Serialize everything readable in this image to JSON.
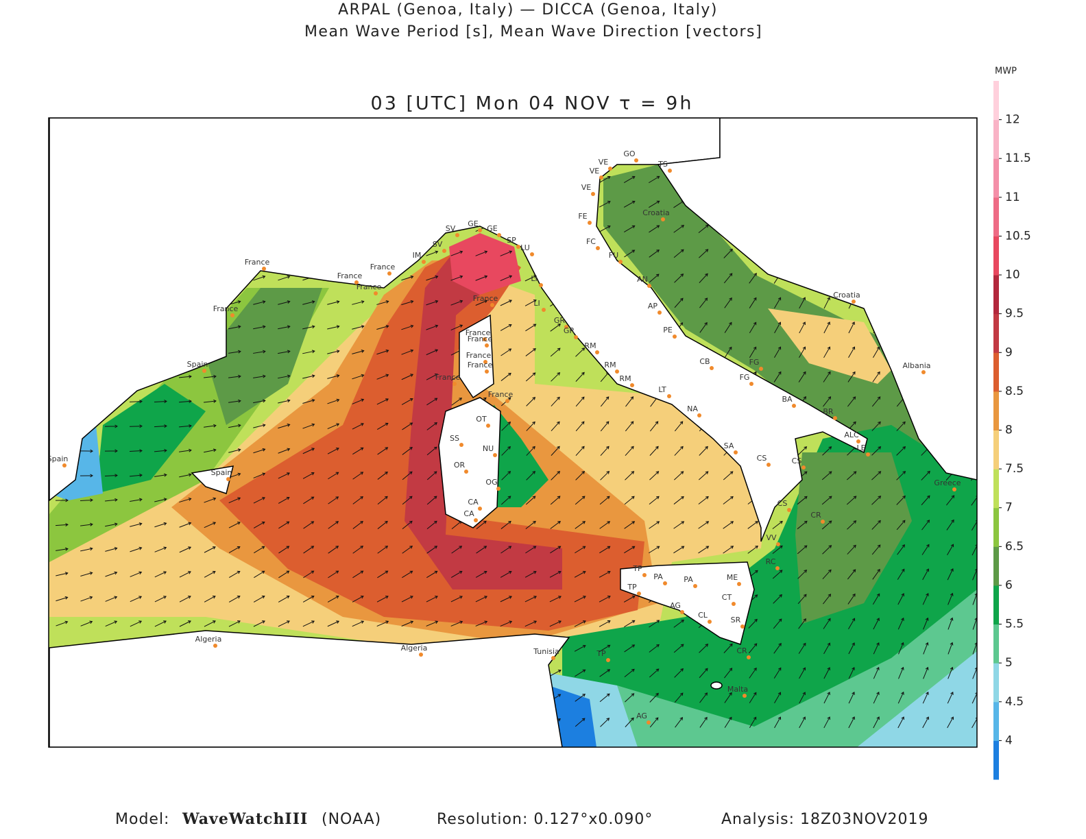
{
  "header": {
    "line1": "ARPAL (Genoa, Italy)  —  DICCA (Genoa, Italy)",
    "line2": "Mean Wave Period [s], Mean Wave Direction [vectors]"
  },
  "map": {
    "title": "03 [UTC] Mon 04 NOV  τ = 9h",
    "places": [
      "France",
      "France",
      "France",
      "France",
      "France",
      "Spain",
      "Spain",
      "Spain",
      "IM",
      "SV",
      "SV",
      "GE",
      "GE",
      "SP",
      "LU",
      "LI",
      "LI",
      "GR",
      "GR",
      "France",
      "France",
      "France",
      "France",
      "France",
      "France",
      "France",
      "OT",
      "SS",
      "NU",
      "OR",
      "OG",
      "CA",
      "CA",
      "RM",
      "RM",
      "RM",
      "LT",
      "NA",
      "SA",
      "CS",
      "CS",
      "VV",
      "RC",
      "TP",
      "TP",
      "PA",
      "PA",
      "ME",
      "CT",
      "SR",
      "CR",
      "AG",
      "CL",
      "Malta",
      "Tunisia",
      "TP",
      "AG",
      "Algeria",
      "Algeria",
      "VE",
      "VE",
      "VE",
      "GO",
      "TS",
      "FE",
      "FC",
      "FU",
      "AN",
      "AP",
      "PE",
      "CB",
      "FG",
      "FG",
      "BA",
      "BR",
      "ALC",
      "LE",
      "CS",
      "CR",
      "Croatia",
      "Croatia",
      "Albania",
      "Greece"
    ]
  },
  "colorbar": {
    "title": "MWP",
    "lim": [
      3.5,
      12.5
    ],
    "ticks": [
      4,
      4.5,
      5,
      5.5,
      6,
      6.5,
      7,
      7.5,
      8,
      8.5,
      9,
      9.5,
      10,
      10.5,
      11,
      11.5,
      12
    ],
    "colors": [
      "#1c7fe0",
      "#57b6e8",
      "#8fd7e6",
      "#5dc890",
      "#0fa54a",
      "#5d9a47",
      "#8cc63f",
      "#bfe05a",
      "#f5cf7a",
      "#e9973f",
      "#dc5e2f",
      "#c23a43",
      "#b3283d",
      "#e8485f",
      "#ee6b85",
      "#f48fa8",
      "#f9b3c6",
      "#ffd0dc"
    ]
  },
  "footer": {
    "model_label": "Model:",
    "model": "WaveWatchIII",
    "model_org": "(NOAA)",
    "resolution": "Resolution: 0.127°x0.090°",
    "analysis": "Analysis: 18Z03NOV2019"
  }
}
